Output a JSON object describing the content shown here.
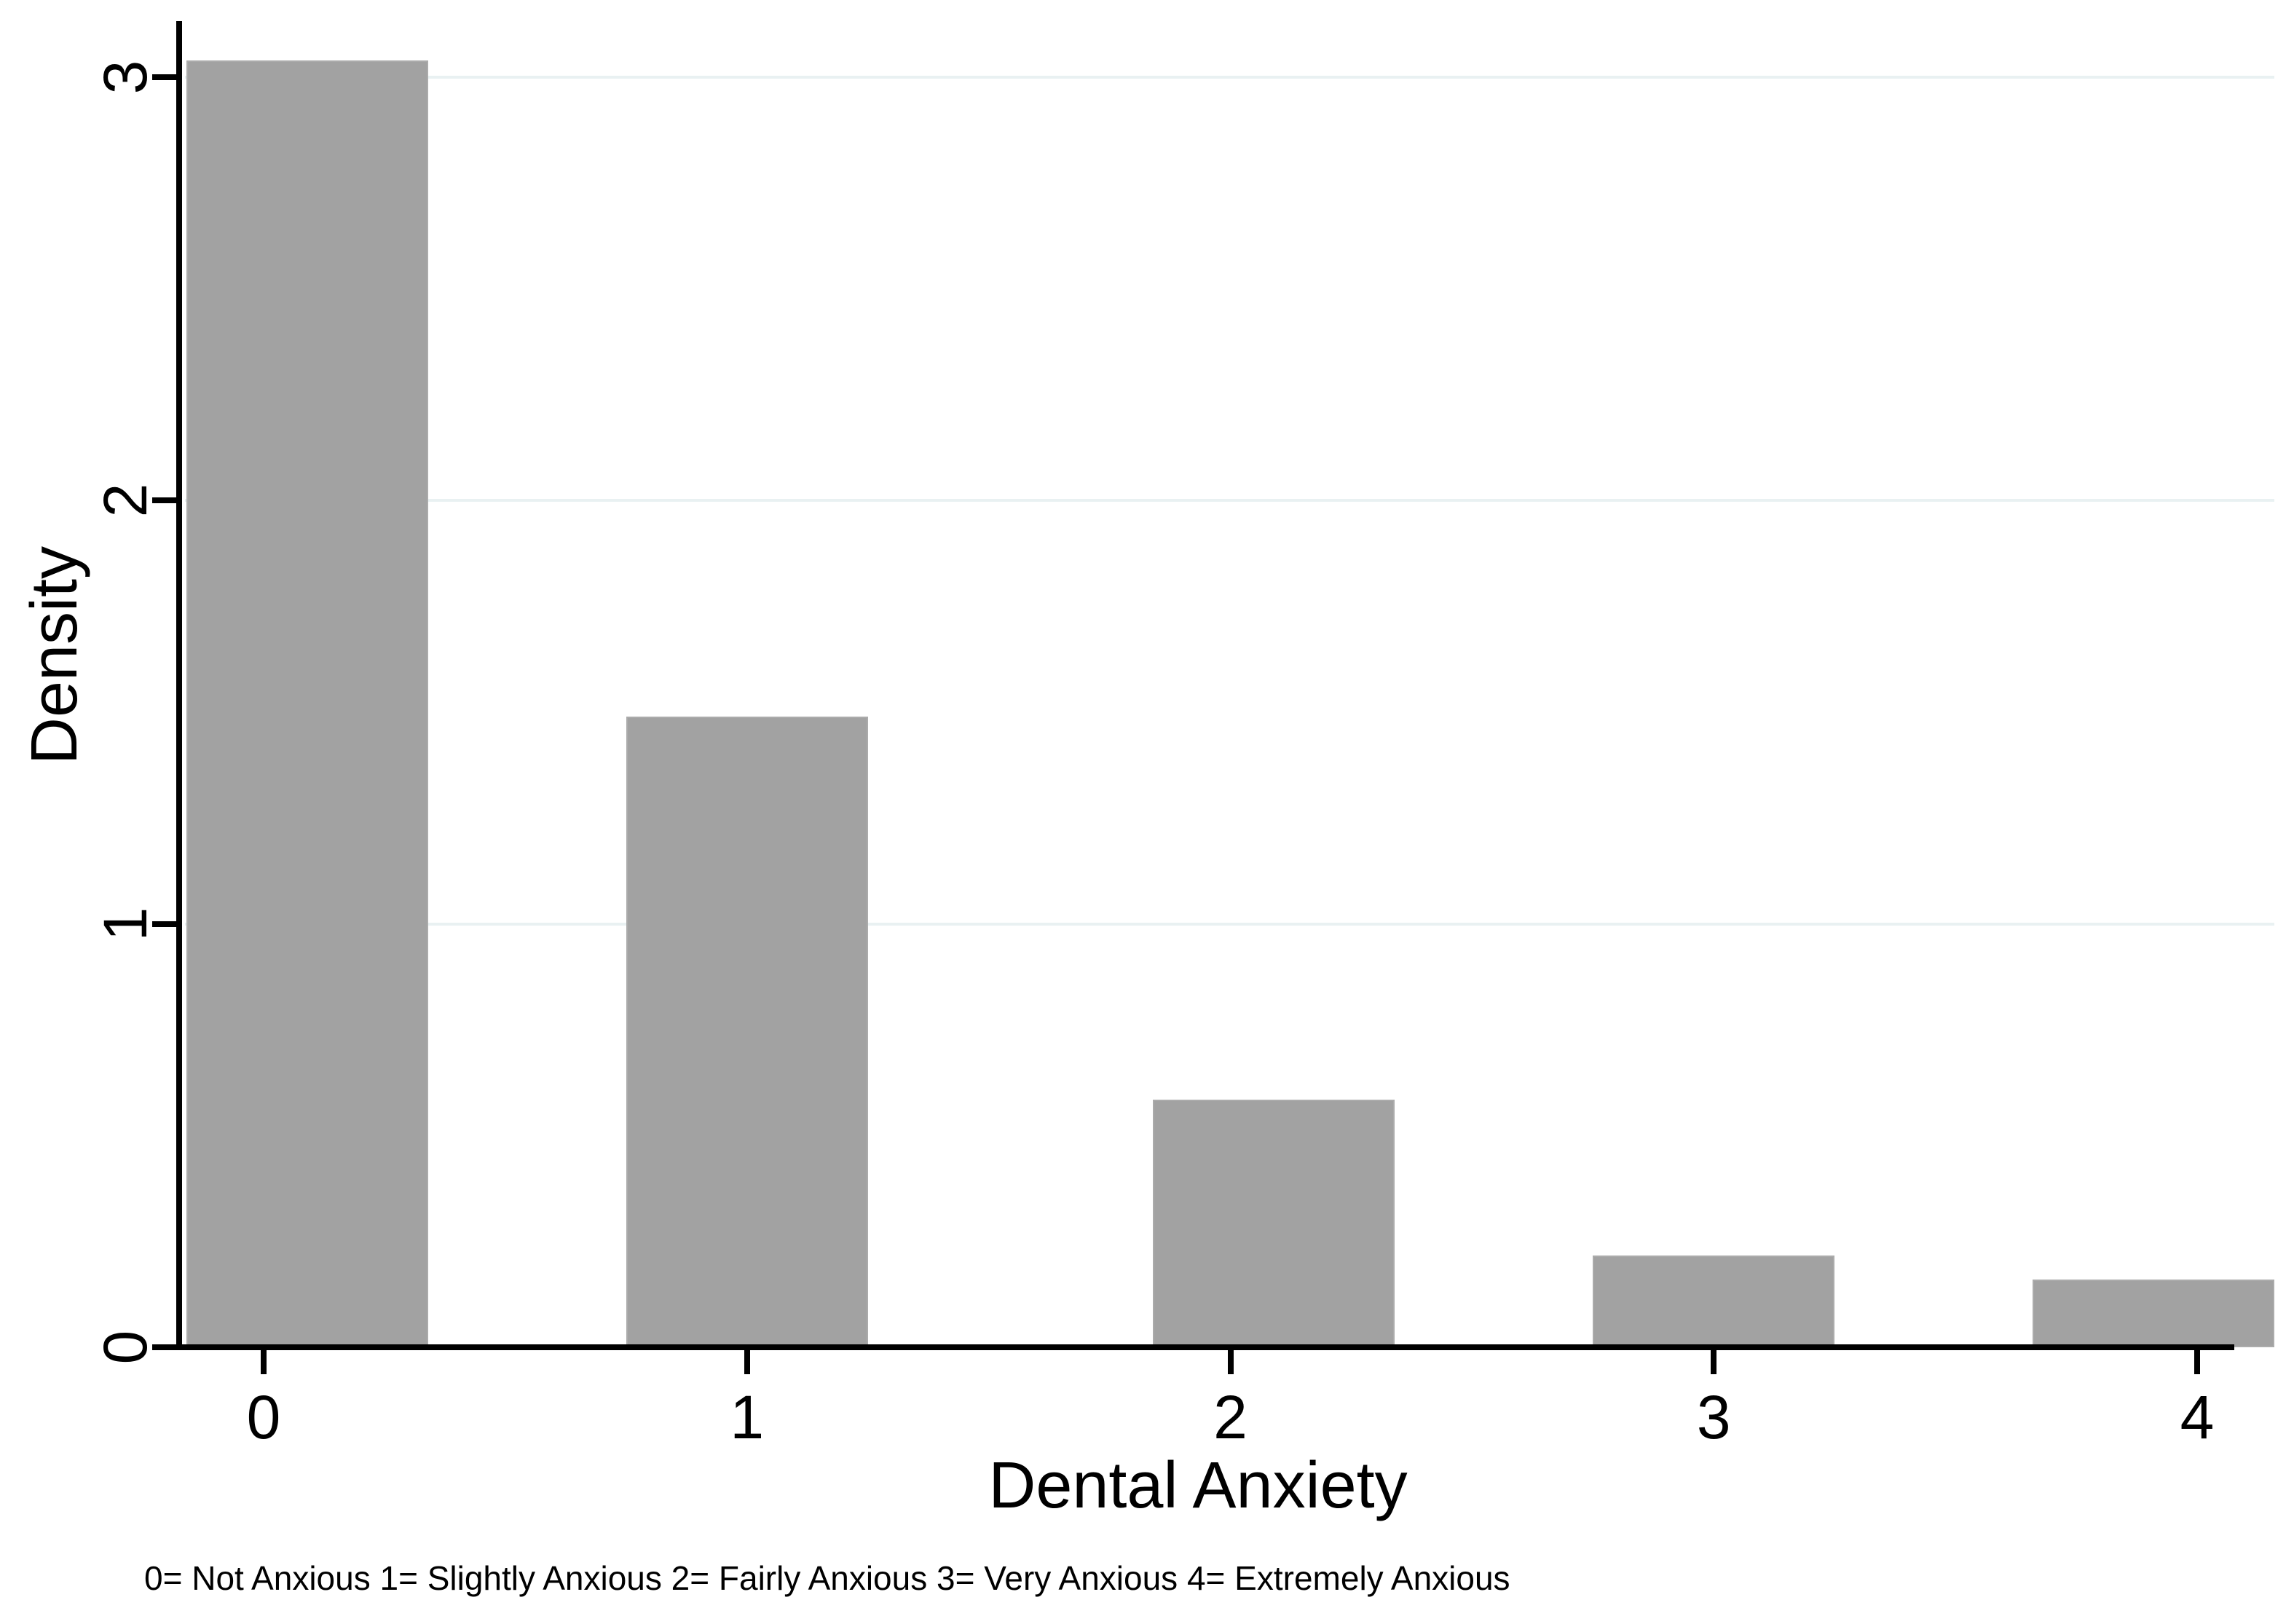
{
  "chart_data": {
    "type": "bar",
    "title": "",
    "xlabel": "Dental Anxiety",
    "ylabel": "Density",
    "footnote": "0= Not Anxious 1= Slightly Anxious 2= Fairly Anxious 3= Very Anxious 4= Extremely Anxious",
    "categories": [
      "0",
      "1",
      "2",
      "3",
      "4"
    ],
    "values": [
      3.04,
      1.49,
      0.585,
      0.217,
      0.16
    ],
    "bar_centers": [
      0.09,
      1.0,
      2.09,
      3.0,
      3.91
    ],
    "bar_width": 0.5,
    "x_ticks": [
      "0",
      "1",
      "2",
      "3",
      "4"
    ],
    "y_ticks": [
      "0",
      "1",
      "2",
      "3"
    ],
    "y_gridlines": [
      1,
      2,
      3
    ],
    "xlim": [
      -0.22,
      4.16
    ],
    "ylim": [
      0,
      3.14
    ],
    "legend_position": "none",
    "grid": "horizontal",
    "category_meanings": {
      "0": "Not Anxious",
      "1": "Slightly Anxious",
      "2": "Fairly Anxious",
      "3": "Very Anxious",
      "4": "Extremely Anxious"
    },
    "colors": {
      "bar_fill": "#a2a2a2",
      "bar_outline": "#ababab",
      "gridline": "#e9f1f2",
      "axis": "#000000",
      "text": "#000000",
      "background": "#ffffff"
    }
  }
}
